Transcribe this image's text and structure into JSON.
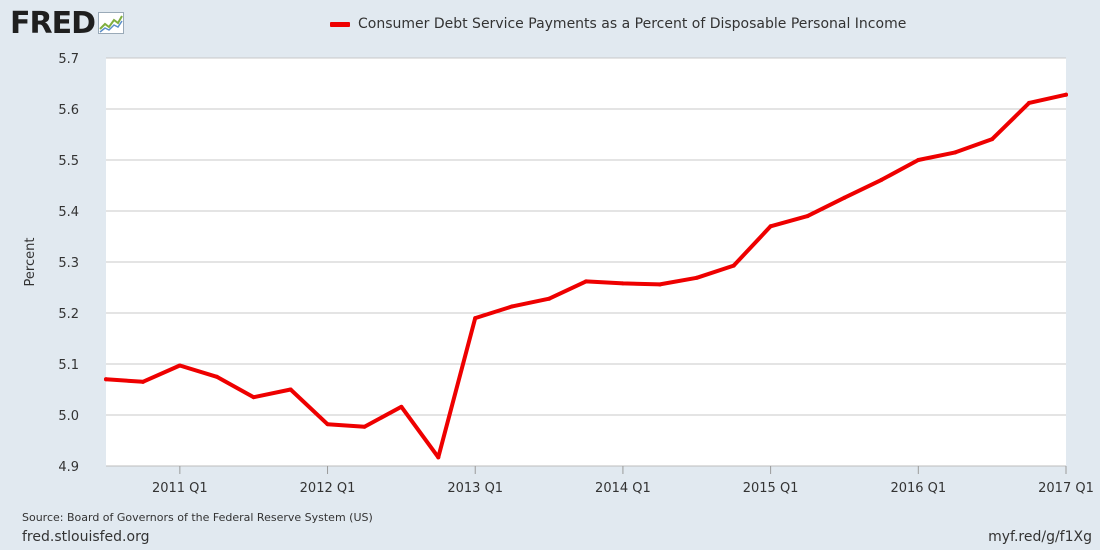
{
  "header": {
    "logo_text": "FRED",
    "logo_icon": "fred-chart-icon"
  },
  "footer": {
    "source": "Source: Board of Governors of the Federal Reserve System (US)",
    "site": "fred.stlouisfed.org",
    "short_link": "myf.red/g/f1Xg"
  },
  "colors": {
    "background": "#e1e9f0",
    "plot_background": "#ffffff",
    "series": "#ee0000",
    "gridline": "#c8c8c8"
  },
  "chart_data": {
    "type": "line",
    "title": "",
    "ylabel": "Percent",
    "xlabel": "",
    "ylim": [
      4.9,
      5.7
    ],
    "yticks": [
      4.9,
      5.0,
      5.1,
      5.2,
      5.3,
      5.4,
      5.5,
      5.6,
      5.7
    ],
    "ytick_labels": [
      "4.9",
      "5.0",
      "5.1",
      "5.2",
      "5.3",
      "5.4",
      "5.5",
      "5.6",
      "5.7"
    ],
    "xlim": [
      "2010 Q3",
      "2017 Q1"
    ],
    "xticks": [
      "2011 Q1",
      "2012 Q1",
      "2013 Q1",
      "2014 Q1",
      "2015 Q1",
      "2016 Q1",
      "2017 Q1"
    ],
    "grid": true,
    "legend_placement": "top-center",
    "series": [
      {
        "name": "Consumer Debt Service Payments as a Percent of Disposable Personal Income",
        "color": "#ee0000",
        "points": [
          {
            "x": "2010 Q3",
            "y": 5.07
          },
          {
            "x": "2010 Q4",
            "y": 5.065
          },
          {
            "x": "2011 Q1",
            "y": 5.097
          },
          {
            "x": "2011 Q2",
            "y": 5.075
          },
          {
            "x": "2011 Q3",
            "y": 5.035
          },
          {
            "x": "2011 Q4",
            "y": 5.05
          },
          {
            "x": "2012 Q1",
            "y": 4.982
          },
          {
            "x": "2012 Q2",
            "y": 4.977
          },
          {
            "x": "2012 Q3",
            "y": 5.016
          },
          {
            "x": "2012 Q4",
            "y": 4.917
          },
          {
            "x": "2013 Q1",
            "y": 5.19
          },
          {
            "x": "2013 Q2",
            "y": 5.213
          },
          {
            "x": "2013 Q3",
            "y": 5.228
          },
          {
            "x": "2013 Q4",
            "y": 5.262
          },
          {
            "x": "2014 Q1",
            "y": 5.258
          },
          {
            "x": "2014 Q2",
            "y": 5.256
          },
          {
            "x": "2014 Q3",
            "y": 5.269
          },
          {
            "x": "2014 Q4",
            "y": 5.293
          },
          {
            "x": "2015 Q1",
            "y": 5.37
          },
          {
            "x": "2015 Q2",
            "y": 5.39
          },
          {
            "x": "2015 Q3",
            "y": 5.426
          },
          {
            "x": "2015 Q4",
            "y": 5.461
          },
          {
            "x": "2016 Q1",
            "y": 5.5
          },
          {
            "x": "2016 Q2",
            "y": 5.515
          },
          {
            "x": "2016 Q3",
            "y": 5.541
          },
          {
            "x": "2016 Q4",
            "y": 5.612
          },
          {
            "x": "2017 Q1",
            "y": 5.628
          }
        ]
      }
    ]
  }
}
